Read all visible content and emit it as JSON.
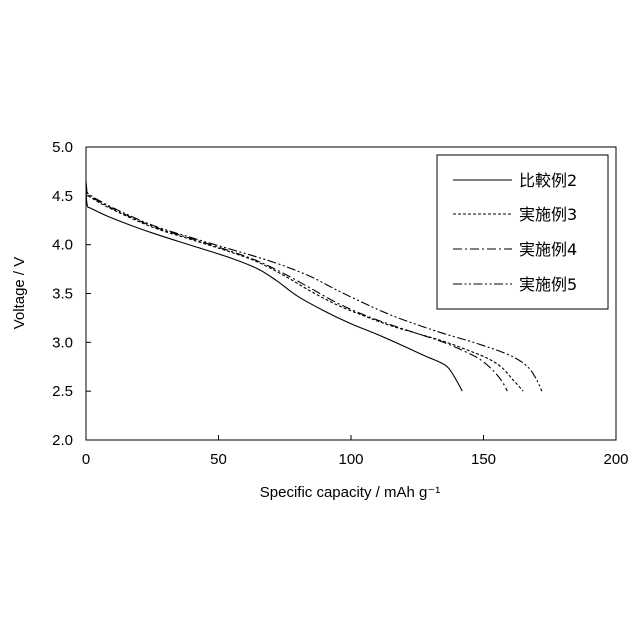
{
  "chart_data": {
    "type": "line",
    "xlabel": "Specific capacity / mAh g⁻¹",
    "ylabel": "Voltage / V",
    "xlim": [
      0,
      200
    ],
    "ylim": [
      2.0,
      5.0
    ],
    "x_ticks": [
      "0",
      "50",
      "100",
      "150",
      "200"
    ],
    "y_ticks": [
      "2.0",
      "2.5",
      "3.0",
      "3.5",
      "4.0",
      "4.5",
      "5.0"
    ],
    "grid": false,
    "legend_position": "top-right",
    "series": [
      {
        "name": "比較例2",
        "line_style": "solid",
        "x": [
          0,
          0.5,
          2,
          10,
          25,
          40,
          55,
          65,
          72,
          80,
          90,
          100,
          110,
          120,
          128,
          134,
          137,
          140,
          142
        ],
        "y": [
          4.55,
          4.4,
          4.37,
          4.27,
          4.12,
          3.99,
          3.86,
          3.75,
          3.63,
          3.47,
          3.32,
          3.19,
          3.08,
          2.96,
          2.86,
          2.79,
          2.73,
          2.6,
          2.5
        ]
      },
      {
        "name": "実施例3",
        "line_style": "dashed",
        "x": [
          0,
          0.5,
          2,
          10,
          25,
          40,
          55,
          65,
          75,
          85,
          95,
          105,
          115,
          125,
          135,
          145,
          152,
          157,
          161,
          165
        ],
        "y": [
          4.6,
          4.52,
          4.48,
          4.36,
          4.18,
          4.05,
          3.92,
          3.82,
          3.68,
          3.52,
          3.38,
          3.27,
          3.17,
          3.09,
          3.01,
          2.91,
          2.83,
          2.74,
          2.62,
          2.5
        ]
      },
      {
        "name": "実施例4",
        "line_style": "dash-dot",
        "x": [
          0,
          0.5,
          2,
          10,
          25,
          40,
          55,
          65,
          75,
          85,
          95,
          105,
          115,
          125,
          135,
          145,
          150,
          154,
          157,
          159
        ],
        "y": [
          4.62,
          4.53,
          4.49,
          4.37,
          4.19,
          4.06,
          3.93,
          3.83,
          3.7,
          3.55,
          3.4,
          3.28,
          3.18,
          3.09,
          3.0,
          2.88,
          2.8,
          2.7,
          2.6,
          2.5
        ]
      },
      {
        "name": "実施例5",
        "line_style": "dash-dot-dot",
        "x": [
          0,
          0.5,
          2,
          10,
          25,
          40,
          55,
          65,
          75,
          85,
          95,
          105,
          115,
          125,
          135,
          145,
          155,
          162,
          167,
          170,
          172
        ],
        "y": [
          4.65,
          4.54,
          4.5,
          4.38,
          4.2,
          4.07,
          3.95,
          3.87,
          3.78,
          3.67,
          3.53,
          3.4,
          3.28,
          3.18,
          3.09,
          3.01,
          2.92,
          2.84,
          2.74,
          2.62,
          2.5
        ]
      }
    ]
  }
}
